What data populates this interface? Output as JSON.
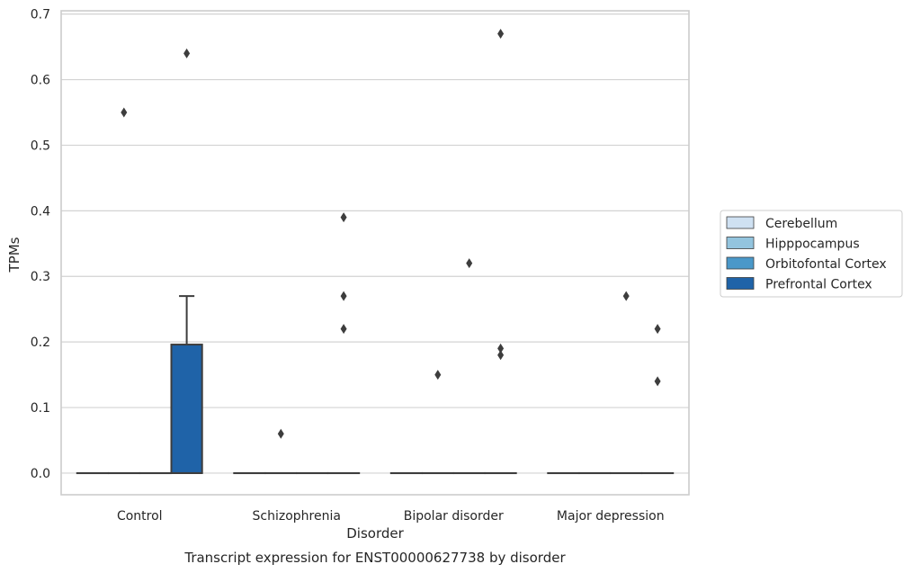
{
  "chart_data": {
    "type": "box",
    "title": "",
    "caption": "Transcript expression for ENST00000627738 by disorder",
    "xlabel": "Disorder",
    "ylabel": "TPMs",
    "ylim": [
      -0.033,
      0.705
    ],
    "yticks": [
      "0.0",
      "0.1",
      "0.2",
      "0.3",
      "0.4",
      "0.5",
      "0.6",
      "0.7"
    ],
    "grid": true,
    "legend_position": "right",
    "categories": [
      "Control",
      "Schizophrenia",
      "Bipolar disorder",
      "Major depression"
    ],
    "series": [
      {
        "name": "Cerebellum",
        "color": "#cfe1f2",
        "boxes": [
          {
            "q1": 0,
            "median": 0,
            "q3": 0,
            "whisker_low": 0,
            "whisker_high": 0,
            "outliers": []
          },
          {
            "q1": 0,
            "median": 0,
            "q3": 0,
            "whisker_low": 0,
            "whisker_high": 0,
            "outliers": []
          },
          {
            "q1": 0,
            "median": 0,
            "q3": 0,
            "whisker_low": 0,
            "whisker_high": 0,
            "outliers": []
          },
          {
            "q1": 0,
            "median": 0,
            "q3": 0,
            "whisker_low": 0,
            "whisker_high": 0,
            "outliers": []
          }
        ]
      },
      {
        "name": "Hipppocampus",
        "color": "#93c4de",
        "boxes": [
          {
            "q1": 0,
            "median": 0,
            "q3": 0,
            "whisker_low": 0,
            "whisker_high": 0,
            "outliers": [
              0.55
            ]
          },
          {
            "q1": 0,
            "median": 0,
            "q3": 0,
            "whisker_low": 0,
            "whisker_high": 0,
            "outliers": [
              0.06
            ]
          },
          {
            "q1": 0,
            "median": 0,
            "q3": 0,
            "whisker_low": 0,
            "whisker_high": 0,
            "outliers": [
              0.15
            ]
          },
          {
            "q1": 0,
            "median": 0,
            "q3": 0,
            "whisker_low": 0,
            "whisker_high": 0,
            "outliers": []
          }
        ]
      },
      {
        "name": "Orbitofontal Cortex",
        "color": "#4a98c9",
        "boxes": [
          {
            "q1": 0,
            "median": 0,
            "q3": 0,
            "whisker_low": 0,
            "whisker_high": 0,
            "outliers": []
          },
          {
            "q1": 0,
            "median": 0,
            "q3": 0,
            "whisker_low": 0,
            "whisker_high": 0,
            "outliers": []
          },
          {
            "q1": 0,
            "median": 0,
            "q3": 0,
            "whisker_low": 0,
            "whisker_high": 0,
            "outliers": [
              0.32
            ]
          },
          {
            "q1": 0,
            "median": 0,
            "q3": 0,
            "whisker_low": 0,
            "whisker_high": 0,
            "outliers": [
              0.27
            ]
          }
        ]
      },
      {
        "name": "Prefrontal Cortex",
        "color": "#1f63a8",
        "boxes": [
          {
            "q1": 0,
            "median": 0,
            "q3": 0.196,
            "whisker_low": 0,
            "whisker_high": 0.27,
            "outliers": [
              0.64
            ]
          },
          {
            "q1": 0,
            "median": 0,
            "q3": 0,
            "whisker_low": 0,
            "whisker_high": 0,
            "outliers": [
              0.22,
              0.27,
              0.39
            ]
          },
          {
            "q1": 0,
            "median": 0,
            "q3": 0,
            "whisker_low": 0,
            "whisker_high": 0,
            "outliers": [
              0.18,
              0.19,
              0.67
            ]
          },
          {
            "q1": 0,
            "median": 0,
            "q3": 0,
            "whisker_low": 0,
            "whisker_high": 0,
            "outliers": [
              0.14,
              0.22
            ]
          }
        ]
      }
    ]
  }
}
